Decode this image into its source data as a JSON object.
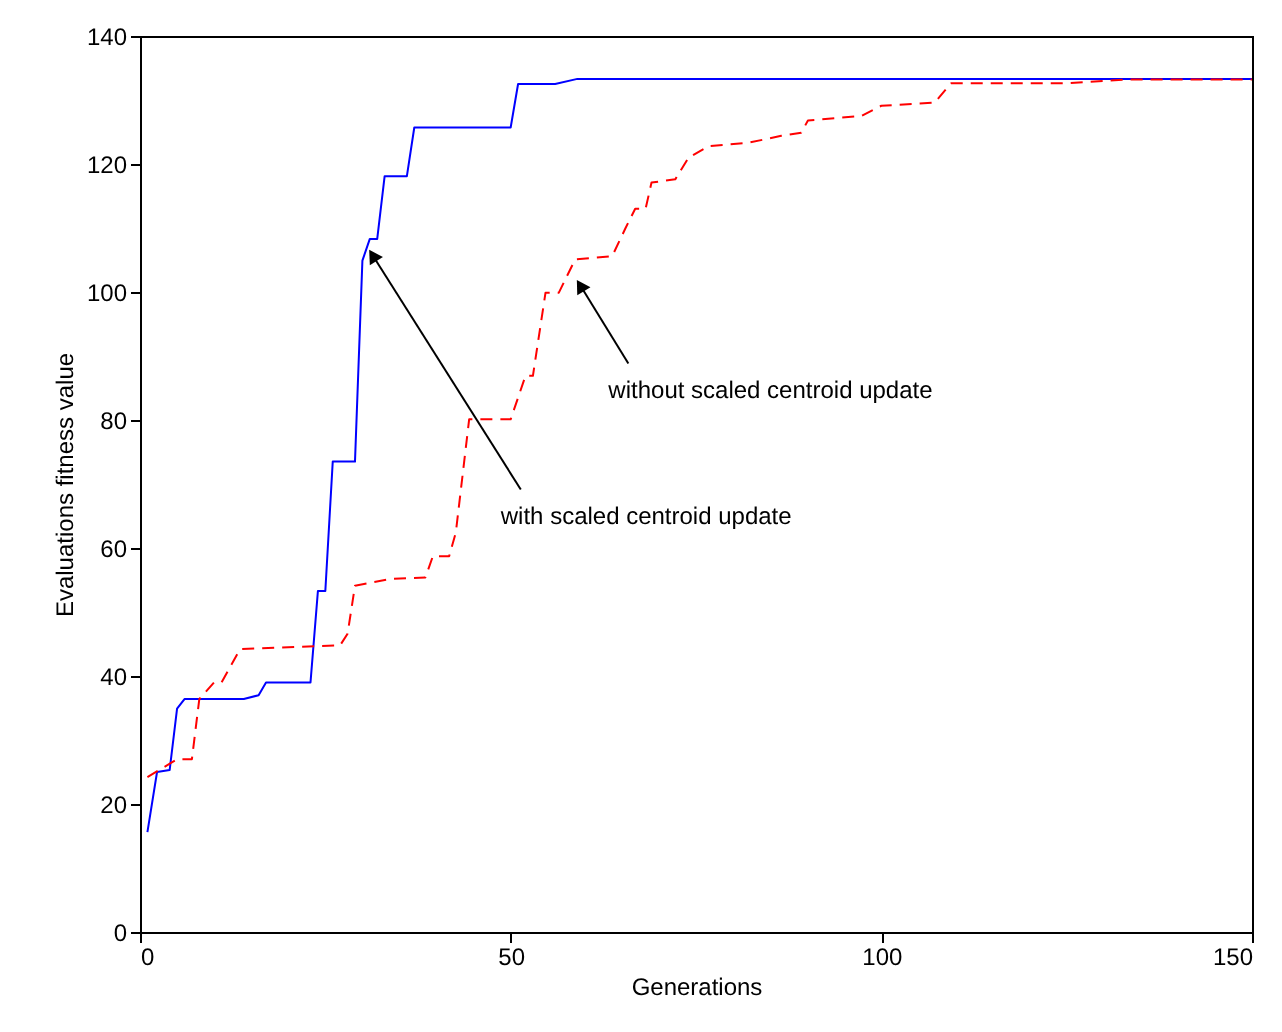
{
  "chart_data": {
    "type": "line",
    "xlabel": "Generations",
    "ylabel": "Evaluations fitness value",
    "xlim": [
      0,
      150
    ],
    "ylim": [
      0,
      140
    ],
    "xticks": [
      0,
      50,
      100,
      150
    ],
    "yticks": [
      0,
      20,
      40,
      60,
      80,
      100,
      120,
      140
    ],
    "grid": false,
    "marker": "none",
    "series": [
      {
        "color": "#0000ff",
        "line_style": "solid",
        "x": [
          1,
          2.3,
          4,
          5,
          6,
          14,
          16,
          17,
          23,
          24,
          25,
          26,
          29,
          30,
          31,
          32,
          33,
          36,
          37,
          50,
          51,
          56,
          59,
          150
        ],
        "values": [
          15.6,
          25,
          25.3,
          34.9,
          36.4,
          36.4,
          37,
          39,
          39,
          53.3,
          53.3,
          73.5,
          73.5,
          104.9,
          108.3,
          108.3,
          118.1,
          118.1,
          125.7,
          125.7,
          132.5,
          132.5,
          133.3,
          133.3
        ]
      },
      {
        "color": "#ff0000",
        "line_style": "dashed",
        "x": [
          1,
          5,
          7,
          8,
          10,
          11,
          13.5,
          27,
          28,
          29,
          34,
          38.5,
          39.5,
          41.7,
          42.6,
          44.4,
          50,
          52,
          53,
          54.7,
          56.5,
          58.7,
          63.7,
          65.5,
          66.8,
          68.2,
          69,
          72.2,
          74,
          76.7,
          82,
          86.5,
          89.2,
          90.1,
          97.3,
          100,
          107.2,
          109.4,
          125,
          133,
          150
        ],
        "values": [
          24.2,
          27,
          27,
          36.4,
          39,
          39,
          44.2,
          44.8,
          46.6,
          54.1,
          55.2,
          55.4,
          58.7,
          58.7,
          62.4,
          80.1,
          80.1,
          86.9,
          86.9,
          99.9,
          99.9,
          105.1,
          105.6,
          110,
          113,
          113,
          117.1,
          117.6,
          121,
          122.8,
          123.3,
          124.4,
          124.9,
          126.8,
          127.5,
          129.1,
          129.6,
          132.6,
          132.6,
          133.2,
          133.2
        ]
      }
    ],
    "annotations": [
      {
        "text": "with scaled centroid update",
        "x": 31.4,
        "y": 105.7
      },
      {
        "text": "without scaled centroid update",
        "x": 59.4,
        "y": 101
      }
    ]
  }
}
